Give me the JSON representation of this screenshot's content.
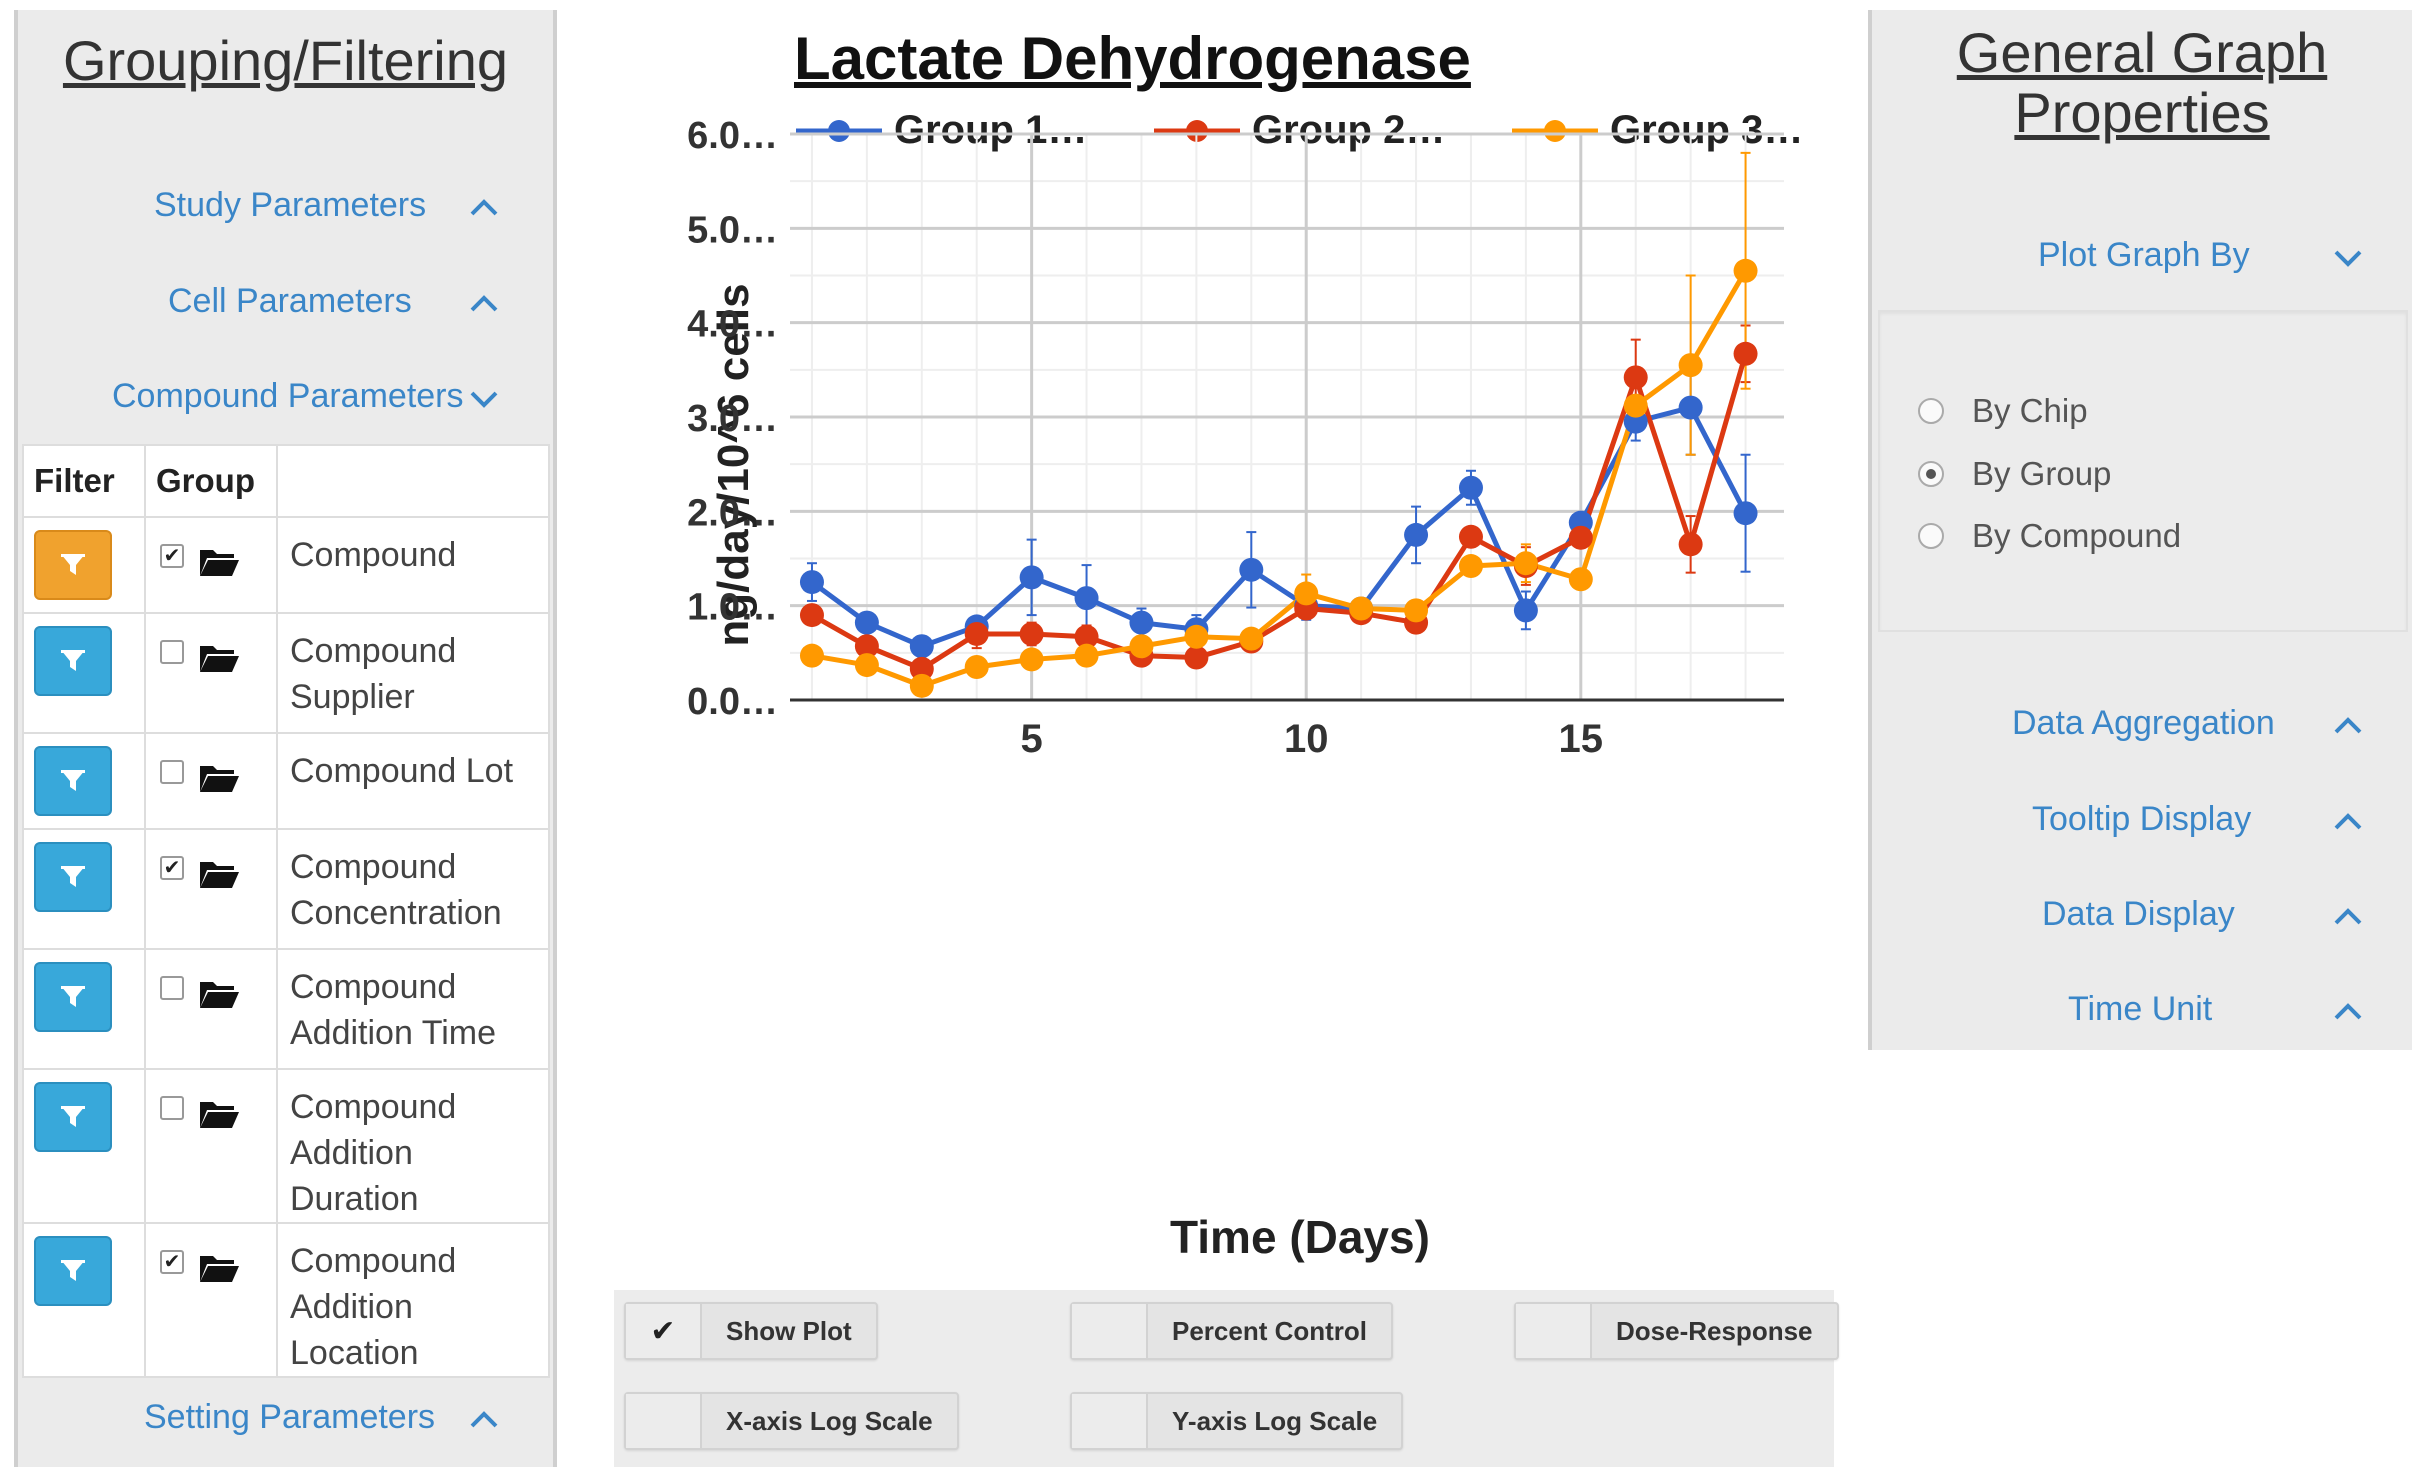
{
  "left_panel": {
    "title": "Grouping/Filtering",
    "accordions": [
      {
        "label": "Study Parameters",
        "state": "up"
      },
      {
        "label": "Cell Parameters",
        "state": "up"
      },
      {
        "label": "Compound Parameters",
        "state": "down"
      }
    ],
    "table": {
      "headers": {
        "filter": "Filter",
        "group": "Group",
        "name": ""
      },
      "rows": [
        {
          "name_line1": "Compound",
          "name_line2": "",
          "grouped": true,
          "filter_color": "orange"
        },
        {
          "name_line1": "Compound",
          "name_line2": "Supplier",
          "grouped": false,
          "filter_color": "blue"
        },
        {
          "name_line1": "Compound Lot",
          "name_line2": "",
          "grouped": false,
          "filter_color": "blue"
        },
        {
          "name_line1": "Compound",
          "name_line2": "Concentration",
          "grouped": true,
          "filter_color": "blue"
        },
        {
          "name_line1": "Compound",
          "name_line2": "Addition Time",
          "grouped": false,
          "filter_color": "blue"
        },
        {
          "name_line1": "Compound",
          "name_line2": "Addition Duration",
          "grouped": false,
          "filter_color": "blue"
        },
        {
          "name_line1": "Compound",
          "name_line2": "Addition Location",
          "grouped": true,
          "filter_color": "blue"
        }
      ]
    },
    "setting_parameters": {
      "label": "Setting Parameters",
      "state": "up"
    }
  },
  "chart_data": {
    "type": "line",
    "title": "Lactate Dehydrogenase",
    "xlabel": "Time (Days)",
    "ylabel": "ng/day/10^6 cells",
    "x": [
      1,
      2,
      3,
      4,
      5,
      6,
      7,
      8,
      9,
      10,
      11,
      12,
      13,
      14,
      15,
      16,
      17,
      18
    ],
    "xlim": [
      0.6,
      18.7
    ],
    "ylim": [
      0,
      6
    ],
    "xticks": [
      5,
      10,
      15
    ],
    "yticks": [
      0,
      1,
      2,
      3,
      4,
      5,
      6
    ],
    "ytick_labels": [
      "0.0…",
      "1.0…",
      "2.0…",
      "3.0…",
      "4.0…",
      "5.0…",
      "6.0…"
    ],
    "grid": true,
    "legend_position": "top",
    "series": [
      {
        "name": "Group 1…",
        "color": "#3366cc",
        "values": [
          1.25,
          0.82,
          0.57,
          0.78,
          1.3,
          1.08,
          0.82,
          0.75,
          1.38,
          1.0,
          0.97,
          1.75,
          2.25,
          0.95,
          1.88,
          2.95,
          3.1,
          1.98
        ],
        "errors": [
          0.2,
          0.05,
          0.05,
          0.1,
          0.4,
          0.35,
          0.15,
          0.15,
          0.4,
          0.15,
          0.05,
          0.3,
          0.18,
          0.2,
          0.1,
          0.2,
          0.5,
          0.62
        ]
      },
      {
        "name": "Group 2…",
        "color": "#dc3912",
        "values": [
          0.9,
          0.57,
          0.33,
          0.7,
          0.7,
          0.67,
          0.47,
          0.45,
          0.62,
          0.97,
          0.92,
          0.82,
          1.73,
          1.42,
          1.72,
          3.42,
          1.65,
          3.67
        ],
        "errors": [
          0.08,
          0.05,
          0.05,
          0.15,
          0.12,
          0.12,
          0.05,
          0.05,
          0.05,
          0.05,
          0.05,
          0.05,
          0.05,
          0.2,
          0.1,
          0.4,
          0.3,
          0.3
        ]
      },
      {
        "name": "Group 3…",
        "color": "#ff9900",
        "values": [
          0.47,
          0.37,
          0.15,
          0.35,
          0.43,
          0.47,
          0.57,
          0.67,
          0.65,
          1.13,
          0.97,
          0.95,
          1.42,
          1.45,
          1.28,
          3.12,
          3.55,
          4.55
        ],
        "errors": [
          0.08,
          0.05,
          0.05,
          0.05,
          0.05,
          0.05,
          0.05,
          0.05,
          0.05,
          0.2,
          0.05,
          0.05,
          0.1,
          0.2,
          0.08,
          0.1,
          0.95,
          1.25
        ]
      }
    ]
  },
  "bottom_buttons": [
    {
      "label": "Show Plot",
      "checked": true
    },
    {
      "label": "Percent Control",
      "checked": false
    },
    {
      "label": "Dose-Response",
      "checked": false
    },
    {
      "label": "X-axis Log Scale",
      "checked": false
    },
    {
      "label": "Y-axis Log Scale",
      "checked": false
    }
  ],
  "check_glyph": "✔",
  "right_panel": {
    "title_line1": "General Graph",
    "title_line2": "Properties",
    "plot_graph_by": {
      "label": "Plot Graph By",
      "state": "down"
    },
    "radio_options": [
      {
        "label": "By Chip",
        "selected": false
      },
      {
        "label": "By Group",
        "selected": true
      },
      {
        "label": "By Compound",
        "selected": false
      }
    ],
    "accordions": [
      {
        "label": "Data Aggregation",
        "state": "up"
      },
      {
        "label": "Tooltip Display",
        "state": "up"
      },
      {
        "label": "Data Display",
        "state": "up"
      },
      {
        "label": "Time Unit",
        "state": "up"
      }
    ]
  },
  "colors": {
    "accent_blue": "#3a86c8",
    "filter_blue": "#38a8da",
    "filter_orange": "#f0a22e"
  },
  "icons": [
    "chevron-up-icon",
    "chevron-down-icon",
    "filter-icon",
    "folder-icon",
    "checkbox-icon",
    "radio-icon",
    "check-icon"
  ]
}
